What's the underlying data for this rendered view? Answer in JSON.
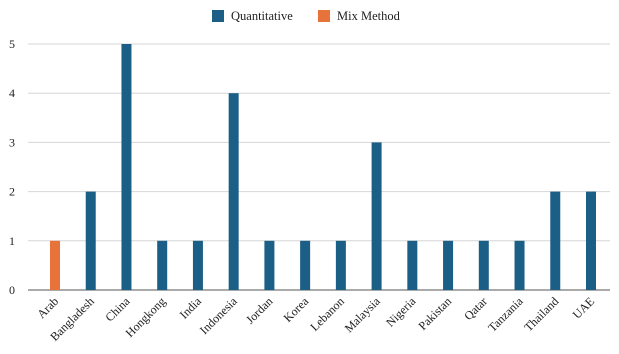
{
  "chart_data": {
    "type": "bar",
    "title": "",
    "xlabel": "",
    "ylabel": "",
    "ylim": [
      0,
      5
    ],
    "yticks": [
      0,
      1,
      2,
      3,
      4,
      5
    ],
    "grid": "horizontal",
    "legend_position": "top-center",
    "categories": [
      "Arab",
      "Bangladesh",
      "China",
      "Hongkong",
      "India",
      "Indonesia",
      "Jordan",
      "Korea",
      "Lebanon",
      "Malaysia",
      "Nigeria",
      "Pakistan",
      "Qatar",
      "Tanzania",
      "Thailand",
      "UAE"
    ],
    "series": [
      {
        "name": "Quantitative",
        "color": "#1b5e86",
        "values": [
          null,
          2,
          5,
          1,
          1,
          4,
          1,
          1,
          1,
          3,
          1,
          1,
          1,
          1,
          2,
          2
        ]
      },
      {
        "name": "Mix Method",
        "color": "#e8733a",
        "values": [
          1,
          null,
          null,
          null,
          null,
          null,
          null,
          null,
          null,
          null,
          null,
          null,
          null,
          null,
          null,
          null
        ]
      }
    ]
  }
}
